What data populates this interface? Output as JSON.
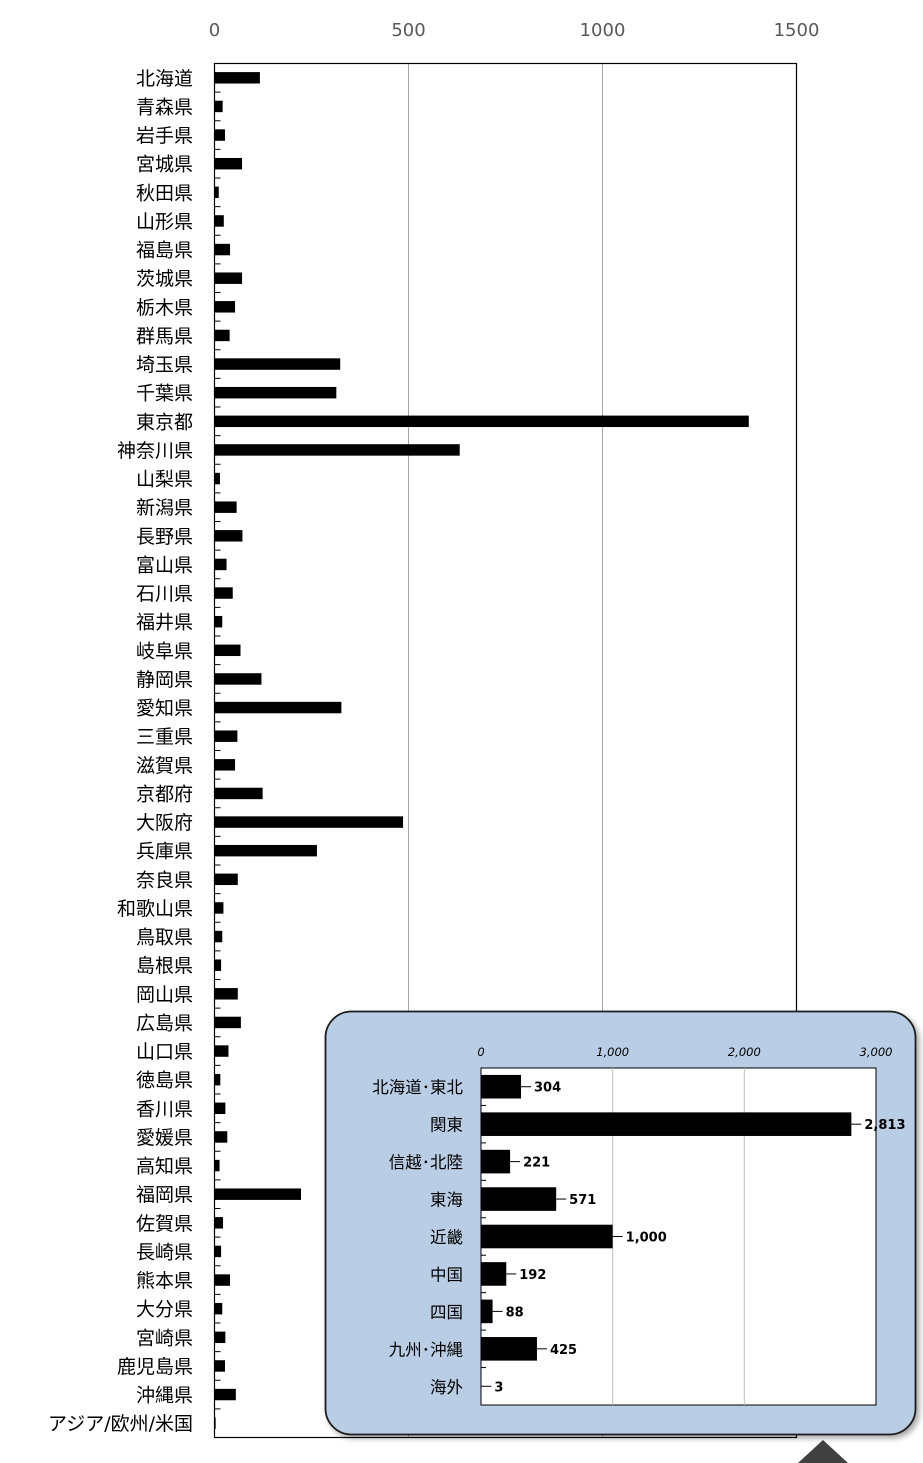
{
  "chart_data": [
    {
      "type": "bar",
      "orientation": "horizontal",
      "xlim": [
        0,
        1500
      ],
      "xticks": [
        "0",
        "500",
        "1000",
        "1500"
      ],
      "grid": true,
      "color": "#000000",
      "categories": [
        "北海道",
        "青森県",
        "岩手県",
        "宮城県",
        "秋田県",
        "山形県",
        "福島県",
        "茨城県",
        "栃木県",
        "群馬県",
        "埼玉県",
        "千葉県",
        "東京都",
        "神奈川県",
        "山梨県",
        "新潟県",
        "長野県",
        "富山県",
        "石川県",
        "福井県",
        "岐阜県",
        "静岡県",
        "愛知県",
        "三重県",
        "滋賀県",
        "京都府",
        "大阪府",
        "兵庫県",
        "奈良県",
        "和歌山県",
        "鳥取県",
        "島根県",
        "岡山県",
        "広島県",
        "山口県",
        "徳島県",
        "香川県",
        "愛媛県",
        "高知県",
        "福岡県",
        "佐賀県",
        "長崎県",
        "熊本県",
        "大分県",
        "宮崎県",
        "鹿児島県",
        "沖縄県",
        "アジア/欧州/米国"
      ],
      "values": [
        117,
        21,
        27,
        71,
        11,
        24,
        40,
        71,
        53,
        39,
        324,
        314,
        1377,
        632,
        14,
        57,
        72,
        31,
        47,
        20,
        67,
        121,
        327,
        59,
        53,
        124,
        486,
        264,
        60,
        23,
        20,
        17,
        60,
        68,
        36,
        15,
        28,
        33,
        13,
        223,
        22,
        17,
        40,
        20,
        28,
        27,
        55,
        3
      ]
    },
    {
      "type": "bar",
      "orientation": "horizontal",
      "xlim": [
        0,
        3000
      ],
      "xticks": [
        "0",
        "1,000",
        "2,000",
        "3,000"
      ],
      "grid": true,
      "color": "#000000",
      "background": "#b9cde5",
      "categories": [
        "北海道･東北",
        "関東",
        "信越･北陸",
        "東海",
        "近畿",
        "中国",
        "四国",
        "九州･沖縄",
        "海外"
      ],
      "values": [
        304,
        2813,
        221,
        571,
        1000,
        192,
        88,
        425,
        3
      ],
      "data_labels": [
        "304",
        "2,813",
        "221",
        "571",
        "1,000",
        "192",
        "88",
        "425",
        "3"
      ]
    }
  ]
}
